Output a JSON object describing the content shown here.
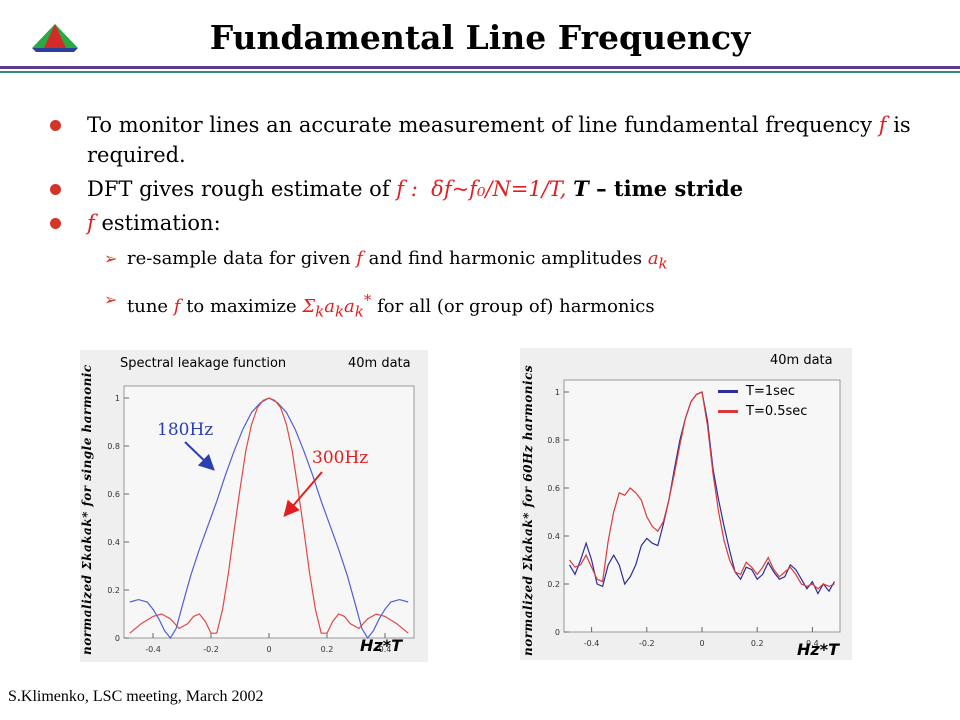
{
  "slide": {
    "title": "Fundamental Line Frequency",
    "footer": "S.Klimenko, LSC meeting, March 2002"
  },
  "bullets": [
    {
      "pre": "To monitor lines  an accurate measurement of line fundamental frequency ",
      "f": "f",
      "post": " is required."
    },
    {
      "pre": "DFT gives rough estimate of ",
      "f": "f :",
      "formula": "δf~f₀/N=1/T,",
      "tail_T": "T",
      "tail": " – time stride"
    },
    {
      "f": "f",
      "post": " estimation:"
    }
  ],
  "sub_bullets": [
    {
      "pre": "re-sample data for given ",
      "f": "f",
      "mid": " and find harmonic amplitudes ",
      "sym": "a",
      "sub": "k"
    },
    {
      "pre": "tune ",
      "f": "f",
      "mid": " to maximize ",
      "sym": "Σ",
      "sub": "k",
      "sym2": "a",
      "sub2": "k",
      "sym3": "a",
      "sub3": "k",
      "sup": "*",
      "post": " for all (or group of) harmonics"
    }
  ],
  "left_panel": {
    "header_left": "Spectral leakage function",
    "header_right": "40m data",
    "ylabel": "normalized  Σkakak* for single harmonic",
    "xlabel": "Hz*T",
    "label_a": "180Hz",
    "label_b": "300Hz"
  },
  "right_panel": {
    "header_right": "40m data",
    "ylabel": "normalized  Σkakak* for 60Hz harmonics",
    "xlabel": "Hz*T"
  },
  "chart_data": [
    {
      "type": "line",
      "title": "Spectral leakage function",
      "xlabel": "Hz*T",
      "ylabel": "normalized Σkakak* for single harmonic",
      "xlim": [
        -0.5,
        0.5
      ],
      "ylim": [
        0,
        1.05
      ],
      "xticks": [
        "-0.4",
        "-0.2",
        "0",
        "0.2",
        "0.4"
      ],
      "yticks": [
        "0",
        "0.2",
        "0.4",
        "0.6",
        "0.8",
        "1"
      ],
      "series": [
        {
          "name": "180Hz",
          "color": "#4e5fd6",
          "x": [
            -0.48,
            -0.45,
            -0.42,
            -0.4,
            -0.38,
            -0.36,
            -0.34,
            -0.32,
            -0.3,
            -0.27,
            -0.24,
            -0.21,
            -0.18,
            -0.15,
            -0.12,
            -0.09,
            -0.06,
            -0.03,
            0,
            0.03,
            0.06,
            0.09,
            0.12,
            0.15,
            0.18,
            0.21,
            0.24,
            0.27,
            0.3,
            0.32,
            0.34,
            0.36,
            0.38,
            0.4,
            0.42,
            0.45,
            0.48
          ],
          "y": [
            0.15,
            0.16,
            0.15,
            0.12,
            0.08,
            0.03,
            0.0,
            0.04,
            0.13,
            0.26,
            0.37,
            0.47,
            0.57,
            0.68,
            0.78,
            0.87,
            0.94,
            0.98,
            1.0,
            0.98,
            0.94,
            0.87,
            0.78,
            0.68,
            0.57,
            0.47,
            0.37,
            0.26,
            0.13,
            0.04,
            0.0,
            0.03,
            0.08,
            0.12,
            0.15,
            0.16,
            0.15
          ]
        },
        {
          "name": "300Hz",
          "color": "#e04848",
          "x": [
            -0.48,
            -0.44,
            -0.4,
            -0.37,
            -0.34,
            -0.31,
            -0.28,
            -0.26,
            -0.24,
            -0.22,
            -0.2,
            -0.18,
            -0.16,
            -0.14,
            -0.12,
            -0.1,
            -0.08,
            -0.06,
            -0.04,
            -0.02,
            0,
            0.02,
            0.04,
            0.06,
            0.08,
            0.1,
            0.12,
            0.14,
            0.16,
            0.18,
            0.2,
            0.22,
            0.24,
            0.26,
            0.28,
            0.31,
            0.34,
            0.37,
            0.4,
            0.44,
            0.48
          ],
          "y": [
            0.02,
            0.06,
            0.09,
            0.1,
            0.08,
            0.04,
            0.06,
            0.09,
            0.1,
            0.07,
            0.02,
            0.02,
            0.12,
            0.27,
            0.45,
            0.62,
            0.78,
            0.89,
            0.96,
            0.99,
            1.0,
            0.99,
            0.96,
            0.89,
            0.78,
            0.62,
            0.45,
            0.27,
            0.12,
            0.02,
            0.02,
            0.07,
            0.1,
            0.09,
            0.06,
            0.04,
            0.08,
            0.1,
            0.09,
            0.06,
            0.02
          ]
        }
      ]
    },
    {
      "type": "line",
      "title": "40m data",
      "xlabel": "Hz*T",
      "ylabel": "normalized Σkakak* for 60Hz harmonics",
      "xlim": [
        -0.5,
        0.5
      ],
      "ylim": [
        0,
        1.05
      ],
      "xticks": [
        "-0.4",
        "-0.2",
        "0",
        "0.2",
        "0.4"
      ],
      "yticks": [
        "0",
        "0.2",
        "0.4",
        "0.6",
        "0.8",
        "1"
      ],
      "series": [
        {
          "name": "T=1sec",
          "color": "#2a2d9a",
          "x": [
            -0.48,
            -0.46,
            -0.44,
            -0.42,
            -0.4,
            -0.38,
            -0.36,
            -0.34,
            -0.32,
            -0.3,
            -0.28,
            -0.26,
            -0.24,
            -0.22,
            -0.2,
            -0.18,
            -0.16,
            -0.14,
            -0.12,
            -0.1,
            -0.08,
            -0.06,
            -0.04,
            -0.02,
            0,
            0.02,
            0.04,
            0.06,
            0.08,
            0.1,
            0.12,
            0.14,
            0.16,
            0.18,
            0.2,
            0.22,
            0.24,
            0.26,
            0.28,
            0.3,
            0.32,
            0.34,
            0.36,
            0.38,
            0.4,
            0.42,
            0.44,
            0.46,
            0.48
          ],
          "y": [
            0.28,
            0.24,
            0.3,
            0.37,
            0.3,
            0.2,
            0.19,
            0.28,
            0.32,
            0.28,
            0.2,
            0.23,
            0.28,
            0.36,
            0.39,
            0.37,
            0.36,
            0.45,
            0.55,
            0.68,
            0.8,
            0.89,
            0.96,
            0.99,
            1.0,
            0.88,
            0.68,
            0.55,
            0.44,
            0.34,
            0.25,
            0.22,
            0.27,
            0.26,
            0.22,
            0.24,
            0.29,
            0.25,
            0.22,
            0.23,
            0.28,
            0.26,
            0.22,
            0.18,
            0.21,
            0.16,
            0.2,
            0.17,
            0.21
          ]
        },
        {
          "name": "T=0.5sec",
          "color": "#d83a3a",
          "x": [
            -0.48,
            -0.46,
            -0.44,
            -0.42,
            -0.4,
            -0.38,
            -0.36,
            -0.34,
            -0.32,
            -0.3,
            -0.28,
            -0.26,
            -0.24,
            -0.22,
            -0.2,
            -0.18,
            -0.16,
            -0.14,
            -0.12,
            -0.1,
            -0.08,
            -0.06,
            -0.04,
            -0.02,
            0,
            0.02,
            0.04,
            0.06,
            0.08,
            0.1,
            0.12,
            0.14,
            0.16,
            0.18,
            0.2,
            0.22,
            0.24,
            0.26,
            0.28,
            0.3,
            0.32,
            0.34,
            0.36,
            0.38,
            0.4,
            0.42,
            0.44,
            0.46,
            0.48
          ],
          "y": [
            0.3,
            0.27,
            0.28,
            0.32,
            0.27,
            0.22,
            0.21,
            0.38,
            0.5,
            0.58,
            0.57,
            0.6,
            0.58,
            0.55,
            0.48,
            0.44,
            0.42,
            0.46,
            0.55,
            0.66,
            0.78,
            0.89,
            0.96,
            0.99,
            1.0,
            0.86,
            0.66,
            0.5,
            0.38,
            0.3,
            0.25,
            0.24,
            0.29,
            0.27,
            0.24,
            0.27,
            0.31,
            0.26,
            0.23,
            0.25,
            0.27,
            0.24,
            0.2,
            0.19,
            0.2,
            0.18,
            0.2,
            0.19,
            0.2
          ]
        }
      ]
    }
  ]
}
